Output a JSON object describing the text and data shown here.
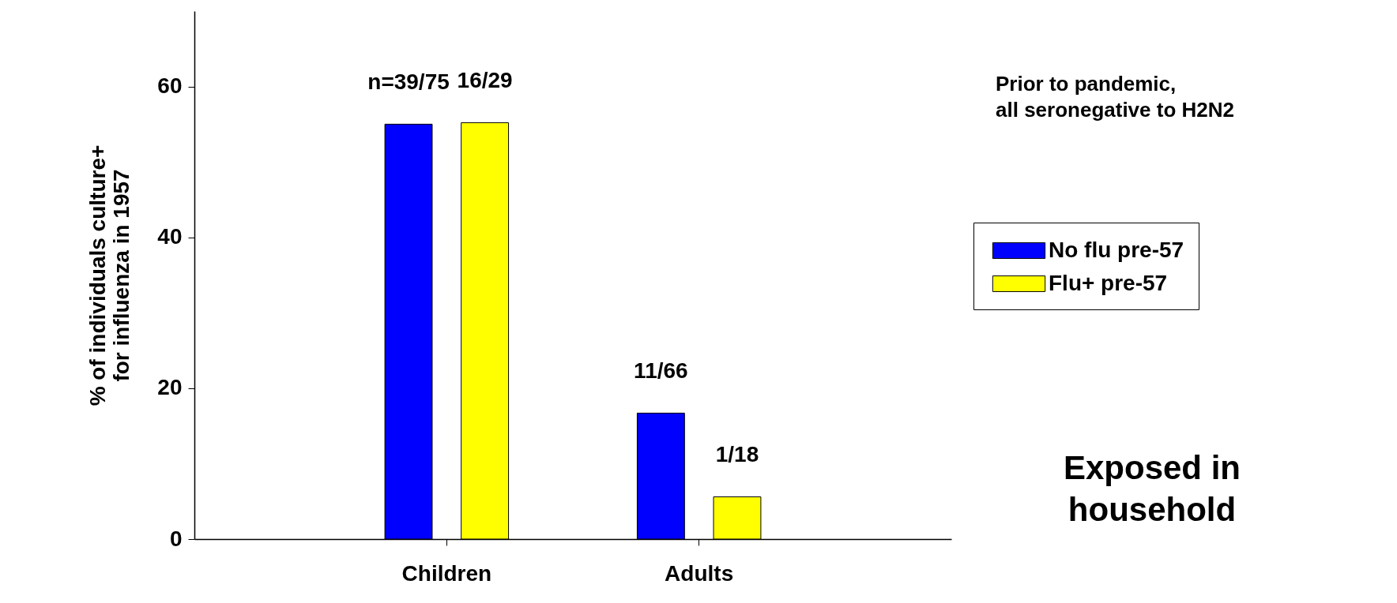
{
  "chart_data": {
    "type": "bar",
    "ylabel": "% of individuals culture+\nfor influenza in 1957",
    "categories": [
      "Children",
      "Adults"
    ],
    "series": [
      {
        "name": "No flu pre-57",
        "color": "#0000ff",
        "values": [
          55,
          16.7
        ],
        "value_labels": [
          "n=39/75",
          "11/66"
        ]
      },
      {
        "name": "Flu+ pre-57",
        "color": "#ffff00",
        "values": [
          55.2,
          5.6
        ],
        "value_labels": [
          "16/29",
          "1/18"
        ]
      }
    ],
    "ylim": [
      0,
      70
    ],
    "yticks": [
      0,
      20,
      40,
      60
    ],
    "grid": false,
    "legend": "right",
    "annotations": [
      "Prior to pandemic,\nall seronegative to H2N2",
      "Exposed in\nhousehold"
    ]
  }
}
